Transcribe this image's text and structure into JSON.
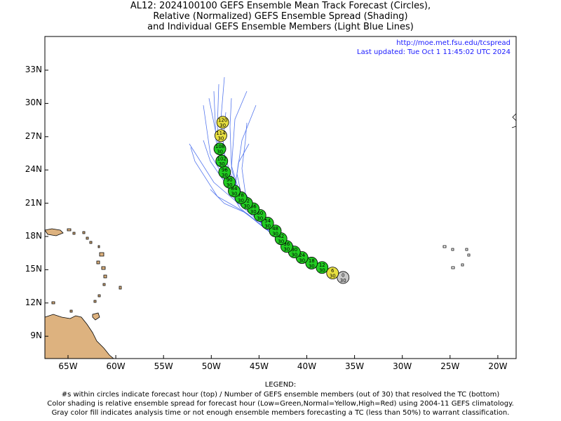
{
  "title": {
    "line1": "AL12: 2024100100 GEFS Ensemble Mean Track Forecast (Circles),",
    "line2": "Relative (Normalized) GEFS Ensemble Spread (Shading)",
    "line3": "and Individual GEFS Ensemble Members (Light Blue Lines)"
  },
  "source": {
    "url": "http://moe.met.fsu.edu/tcspread",
    "updated": "Last updated: Tue Oct 1 11:45:02 UTC 2024"
  },
  "axes": {
    "x_ticks": [
      "65W",
      "60W",
      "55W",
      "50W",
      "45W",
      "40W",
      "35W",
      "30W",
      "25W",
      "20W"
    ],
    "y_ticks": [
      "33N",
      "30N",
      "27N",
      "24N",
      "21N",
      "18N",
      "15N",
      "12N",
      "9N"
    ]
  },
  "colors": {
    "low_spread": "#22cc22",
    "normal_spread": "#e8e040",
    "analysis": "#c8c8c8",
    "member_track": "#5577ee",
    "land": "#ddb27f"
  },
  "mean_track": [
    {
      "hour": "0",
      "members": "30",
      "lon": -36.2,
      "lat": 14.3,
      "spread": "analysis"
    },
    {
      "hour": "6",
      "members": "30",
      "lon": -37.3,
      "lat": 14.7,
      "spread": "normal"
    },
    {
      "hour": "12",
      "members": "30",
      "lon": -38.4,
      "lat": 15.2,
      "spread": "low"
    },
    {
      "hour": "18",
      "members": "30",
      "lon": -39.5,
      "lat": 15.6,
      "spread": "low"
    },
    {
      "hour": "24",
      "members": "30",
      "lon": -40.5,
      "lat": 16.1,
      "spread": "low"
    },
    {
      "hour": "30",
      "members": "30",
      "lon": -41.3,
      "lat": 16.6,
      "spread": "low"
    },
    {
      "hour": "36",
      "members": "30",
      "lon": -42.1,
      "lat": 17.1,
      "spread": "low"
    },
    {
      "hour": "42",
      "members": "30",
      "lon": -42.7,
      "lat": 17.8,
      "spread": "low"
    },
    {
      "hour": "48",
      "members": "30",
      "lon": -43.3,
      "lat": 18.5,
      "spread": "low"
    },
    {
      "hour": "54",
      "members": "30",
      "lon": -44.1,
      "lat": 19.2,
      "spread": "low"
    },
    {
      "hour": "60",
      "members": "30",
      "lon": -44.9,
      "lat": 19.9,
      "spread": "low"
    },
    {
      "hour": "66",
      "members": "30",
      "lon": -45.6,
      "lat": 20.5,
      "spread": "low"
    },
    {
      "hour": "72",
      "members": "30",
      "lon": -46.3,
      "lat": 21.0,
      "spread": "low"
    },
    {
      "hour": "78",
      "members": "30",
      "lon": -46.9,
      "lat": 21.5,
      "spread": "low"
    },
    {
      "hour": "84",
      "members": "30",
      "lon": -47.6,
      "lat": 22.1,
      "spread": "low"
    },
    {
      "hour": "90",
      "members": "30",
      "lon": -48.1,
      "lat": 22.9,
      "spread": "low"
    },
    {
      "hour": "96",
      "members": "30",
      "lon": -48.6,
      "lat": 23.8,
      "spread": "low"
    },
    {
      "hour": "102",
      "members": "30",
      "lon": -48.9,
      "lat": 24.8,
      "spread": "low"
    },
    {
      "hour": "108",
      "members": "30",
      "lon": -49.1,
      "lat": 25.9,
      "spread": "low"
    },
    {
      "hour": "114",
      "members": "30",
      "lon": -49.0,
      "lat": 27.1,
      "spread": "normal"
    },
    {
      "hour": "120",
      "members": "30",
      "lon": -48.8,
      "lat": 28.3,
      "spread": "normal"
    }
  ],
  "legend": {
    "heading": "LEGEND:",
    "line1": "#s within circles indicate forecast hour (top) / Number of GEFS ensemble members (out of 30) that resolved the TC (bottom)",
    "line2": "Color shading is relative ensemble spread for forecast hour (Low=Green,Normal=Yellow,High=Red) using 2004-11 GEFS climatology.",
    "line3": "Gray color fill indicates analysis time or not enough ensemble members forecasting a TC (less than 50%) to warrant classification."
  }
}
